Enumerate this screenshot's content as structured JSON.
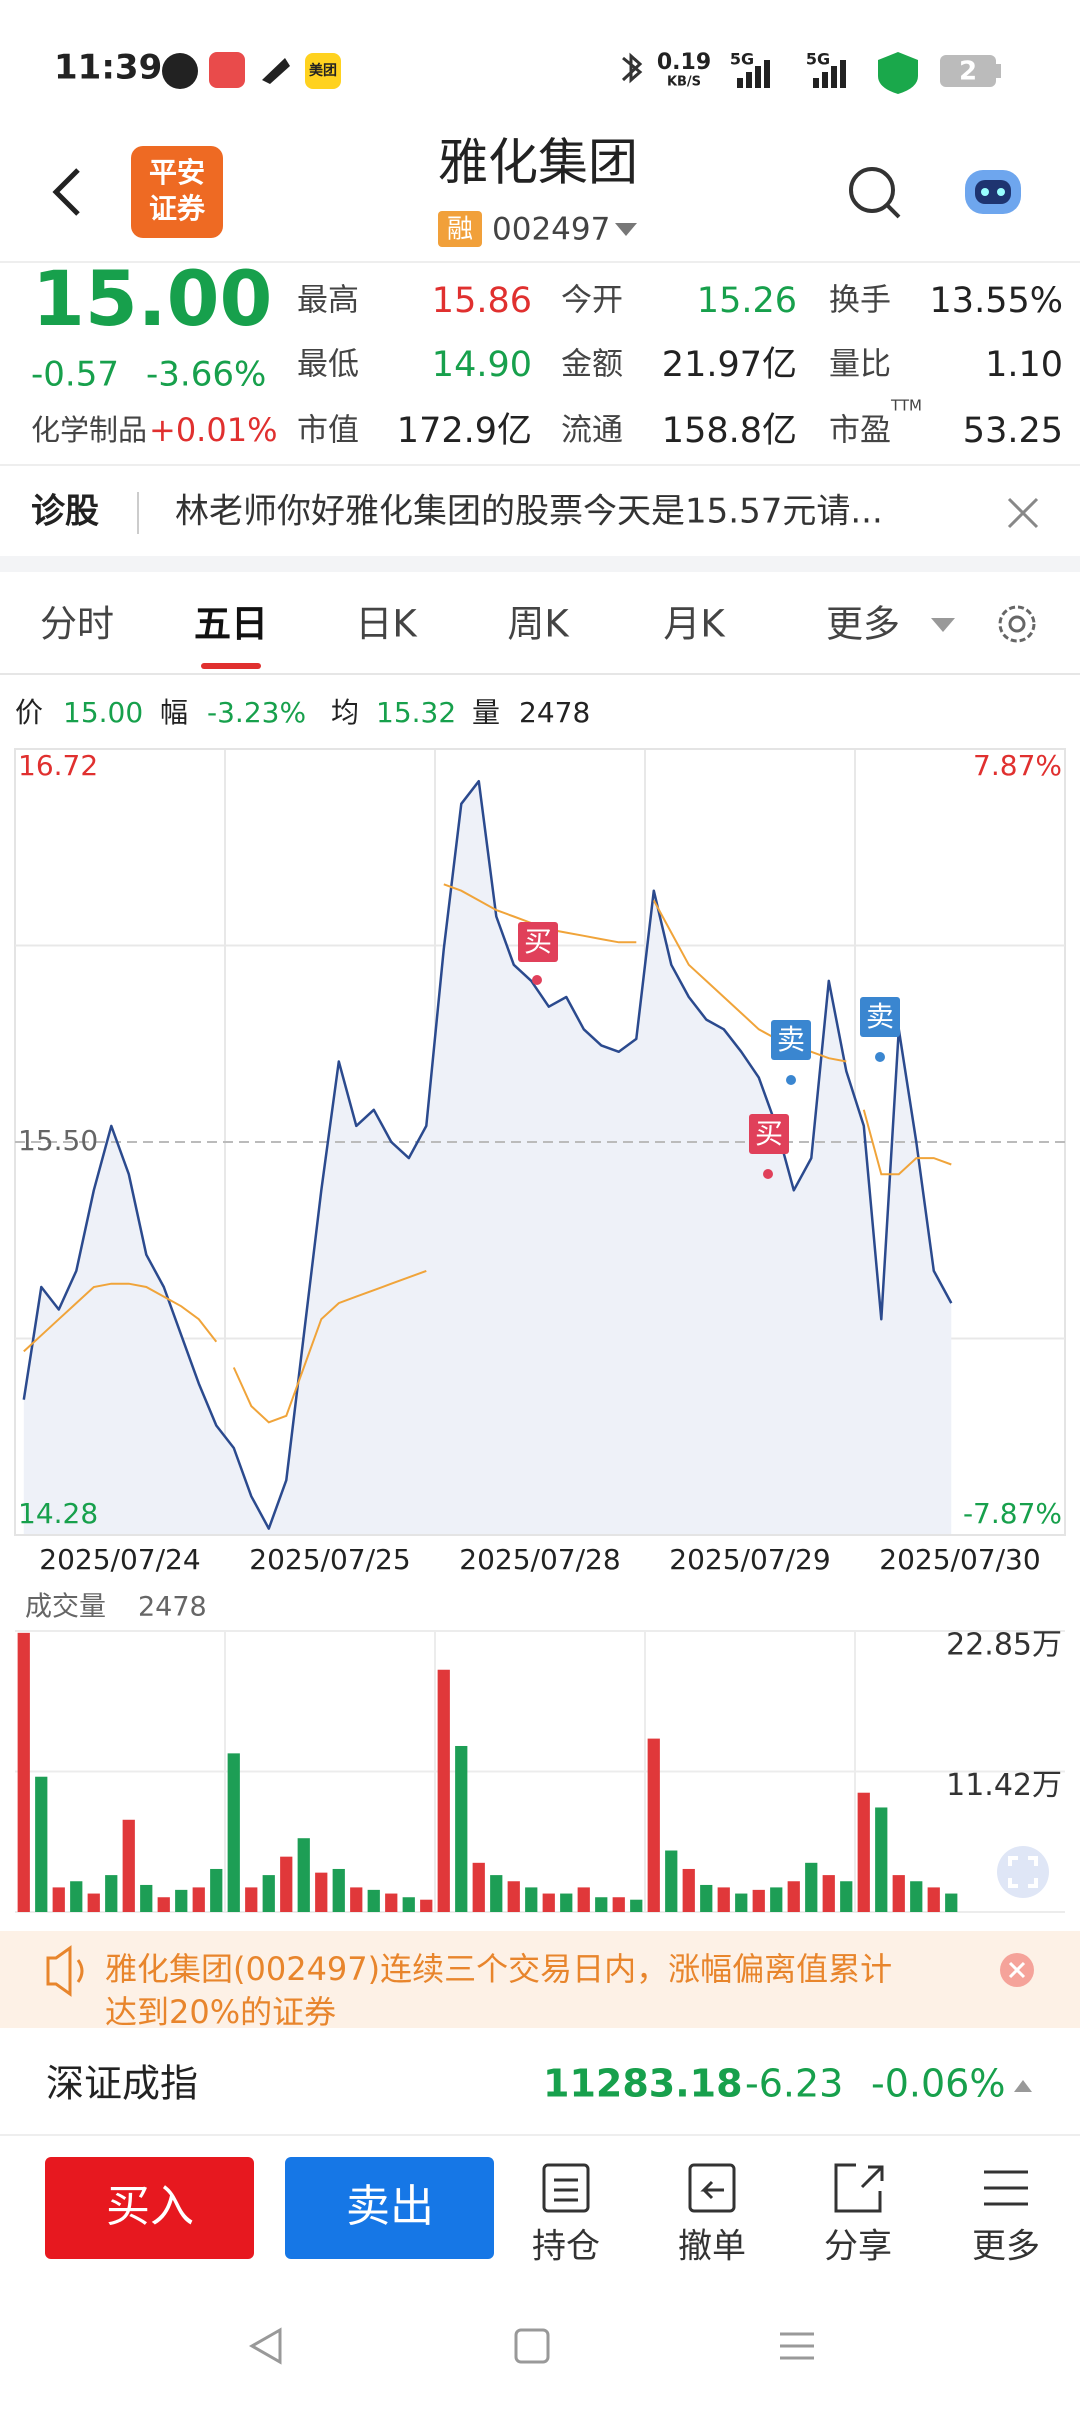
{
  "status_bar": {
    "time": "11:39",
    "speed": "0.19",
    "speed_unit": "KB/S",
    "network_1": "5G",
    "network_2": "5G",
    "battery": "2",
    "app_badge": "美团"
  },
  "header": {
    "logo_lines": [
      "平安",
      "证券"
    ],
    "title": "雅化集团",
    "badge": "融",
    "code": "002497"
  },
  "quote": {
    "price": "15.00",
    "change": "-0.57",
    "change_pct": "-3.66%",
    "sector": "化学制品",
    "sector_change": "+0.01%",
    "fields": [
      {
        "label": "最高",
        "value": "15.86"
      },
      {
        "label": "今开",
        "value": "15.26"
      },
      {
        "label": "换手",
        "value": "13.55%"
      },
      {
        "label": "最低",
        "value": "14.90"
      },
      {
        "label": "金额",
        "value": "21.97亿"
      },
      {
        "label": "量比",
        "value": "1.10"
      },
      {
        "label": "市值",
        "value": "172.9亿"
      },
      {
        "label": "流通",
        "value": "158.8亿"
      },
      {
        "label": "市盈",
        "sup": "TTM",
        "value": "53.25"
      }
    ]
  },
  "diagnosis": {
    "label": "诊股",
    "text": "林老师你好雅化集团的股票今天是15.57元请..."
  },
  "tabs": [
    "分时",
    "五日",
    "日K",
    "周K",
    "月K",
    "更多"
  ],
  "info": [
    {
      "label": "价",
      "value": "15.00"
    },
    {
      "label": "幅",
      "value": "-3.23%"
    },
    {
      "label": "均",
      "value": "15.32"
    },
    {
      "label": "量",
      "value": "2478"
    }
  ],
  "chart_data": [
    {
      "type": "line",
      "categories": [
        "2025/07/24",
        "2025/07/25",
        "2025/07/28",
        "2025/07/29",
        "2025/07/30"
      ],
      "series": [
        {
          "color": "#2b4a8e",
          "values": [
            [
              14.7,
              15.05,
              14.98,
              15.1,
              15.35,
              15.55,
              15.4,
              15.15,
              15.05,
              14.9,
              14.75,
              14.62
            ],
            [
              14.55,
              14.4,
              14.3,
              14.45,
              14.9,
              15.35,
              15.75,
              15.55,
              15.6,
              15.5,
              15.45,
              15.55
            ],
            [
              16.1,
              16.55,
              16.62,
              16.2,
              16.05,
              16.0,
              15.92,
              15.95,
              15.85,
              15.8,
              15.78,
              15.82
            ],
            [
              16.28,
              16.05,
              15.95,
              15.88,
              15.85,
              15.78,
              15.7,
              15.55,
              15.35,
              15.45,
              16.0,
              15.72
            ],
            [
              15.55,
              14.95,
              15.85,
              15.5,
              15.1,
              15.0,
              null,
              null,
              null,
              null,
              null,
              null
            ]
          ]
        },
        {
          "color": "#f0a43a",
          "values": [
            [
              14.85,
              14.9,
              14.95,
              15.0,
              15.05,
              15.06,
              15.06,
              15.05,
              15.02,
              14.99,
              14.95,
              14.88
            ],
            [
              14.8,
              14.68,
              14.63,
              14.65,
              14.8,
              14.95,
              15.0,
              15.02,
              15.04,
              15.06,
              15.08,
              15.1
            ],
            [
              16.3,
              16.28,
              16.25,
              16.22,
              16.2,
              16.18,
              16.16,
              16.15,
              16.14,
              16.13,
              16.12,
              16.12
            ],
            [
              16.25,
              16.15,
              16.05,
              16.0,
              15.95,
              15.9,
              15.85,
              15.82,
              15.8,
              15.78,
              15.76,
              15.75
            ],
            [
              15.6,
              15.4,
              15.4,
              15.45,
              15.45,
              15.43,
              null,
              null,
              null,
              null,
              null,
              null
            ]
          ]
        }
      ],
      "ylim": [
        14.28,
        16.72
      ],
      "yticks": [
        14.28,
        {
          "value": 15.5,
          "label": "15.50"
        },
        16.72
      ],
      "y2lim": [
        -7.87,
        7.87
      ],
      "y2ticks": [
        {
          "value": -7.87,
          "label": "-7.87%"
        },
        {
          "value": 7.87,
          "label": "7.87%"
        }
      ],
      "annotations": [
        "买",
        "卖",
        "买",
        "卖"
      ]
    },
    {
      "type": "bar",
      "title": "成交量",
      "latest": "2478",
      "series": [
        {
          "color": "#e0383a",
          "values": [
            [
              22.7,
              null,
              2.0,
              null,
              1.5,
              null,
              7.5,
              null,
              1.2,
              null,
              2.0,
              null
            ],
            [
              null,
              2.0,
              null,
              4.5,
              null,
              3.2,
              null,
              2.0,
              null,
              1.5,
              null,
              1.0
            ],
            [
              19.7,
              null,
              4.0,
              null,
              2.5,
              null,
              1.5,
              null,
              2.0,
              null,
              1.2,
              null
            ],
            [
              14.1,
              null,
              3.5,
              null,
              2.0,
              null,
              1.8,
              null,
              2.5,
              null,
              3.0,
              null
            ],
            [
              9.7,
              null,
              3.0,
              null,
              2.0,
              null,
              null,
              null,
              null,
              null,
              null,
              null
            ]
          ]
        },
        {
          "color": "#1d9e55",
          "values": [
            [
              null,
              11.0,
              null,
              2.5,
              null,
              3.0,
              null,
              2.2,
              null,
              1.8,
              null,
              3.5
            ],
            [
              12.9,
              null,
              3.0,
              null,
              6.0,
              null,
              3.5,
              null,
              1.8,
              null,
              1.2,
              null
            ],
            [
              null,
              13.5,
              null,
              3.0,
              null,
              2.0,
              null,
              1.5,
              null,
              1.2,
              null,
              1.0
            ],
            [
              null,
              5.0,
              null,
              2.2,
              null,
              1.5,
              null,
              2.0,
              null,
              4.0,
              null,
              2.5
            ],
            [
              null,
              8.5,
              null,
              2.5,
              null,
              1.5,
              null,
              null,
              null,
              null,
              null,
              null
            ]
          ]
        }
      ],
      "ylim": [
        0,
        22.85
      ],
      "yticks": [
        {
          "value": 11.42,
          "label": "11.42万"
        },
        {
          "value": 22.85,
          "label": "22.85万"
        }
      ]
    }
  ],
  "alert": {
    "lines": [
      "雅化集团(002497)连续三个交易日内，涨幅偏离值累计",
      "达到20%的证券"
    ]
  },
  "index": {
    "name": "深证成指",
    "value": "11283.18",
    "change": "-6.23",
    "change_pct": "-0.06%"
  },
  "actions": {
    "buy": "买入",
    "sell": "卖出",
    "tools": [
      "持仓",
      "撤单",
      "分享",
      "更多"
    ]
  }
}
